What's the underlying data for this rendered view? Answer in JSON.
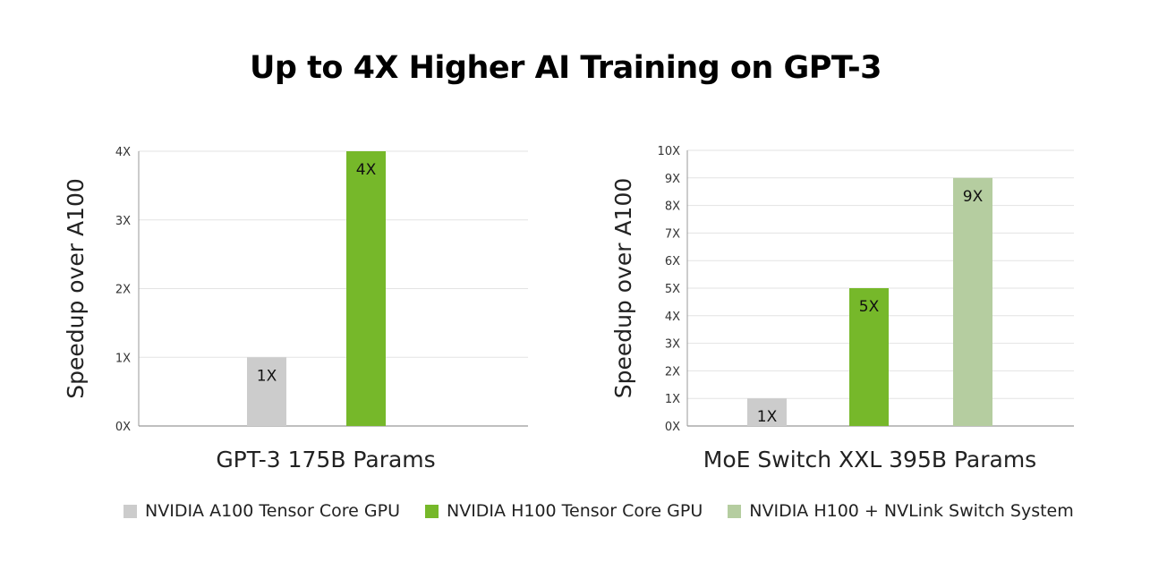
{
  "title": "Up to 4X Higher AI Training on GPT-3",
  "colors": {
    "a100": "#cccccc",
    "h100": "#76b82a",
    "h100_nvlink": "#b5cda0",
    "grid": "#e3e3e3",
    "axis": "#999999"
  },
  "legend": [
    {
      "label": "NVIDIA A100 Tensor Core GPU",
      "color": "#cccccc"
    },
    {
      "label": "NVIDIA H100 Tensor Core GPU",
      "color": "#76b82a"
    },
    {
      "label": "NVIDIA H100 + NVLink Switch System",
      "color": "#b5cda0"
    }
  ],
  "chart_data": [
    {
      "type": "bar",
      "title": "",
      "xlabel": "GPT-3 175B Params",
      "ylabel": "Speedup over A100",
      "ylim": [
        0,
        4
      ],
      "yticks": [
        "0X",
        "1X",
        "2X",
        "3X",
        "4X"
      ],
      "grid": true,
      "series": [
        {
          "name": "NVIDIA A100 Tensor Core GPU",
          "value": 1,
          "label": "1X",
          "color": "#cccccc"
        },
        {
          "name": "NVIDIA H100 Tensor Core GPU",
          "value": 4,
          "label": "4X",
          "color": "#76b82a"
        }
      ]
    },
    {
      "type": "bar",
      "title": "",
      "xlabel": "MoE Switch XXL 395B Params",
      "ylabel": "Speedup over A100",
      "ylim": [
        0,
        10
      ],
      "yticks": [
        "0X",
        "1X",
        "2X",
        "3X",
        "4X",
        "5X",
        "6X",
        "7X",
        "8X",
        "9X",
        "10X"
      ],
      "grid": true,
      "series": [
        {
          "name": "NVIDIA A100 Tensor Core GPU",
          "value": 1,
          "label": "1X",
          "color": "#cccccc"
        },
        {
          "name": "NVIDIA H100 Tensor Core GPU",
          "value": 5,
          "label": "5X",
          "color": "#76b82a"
        },
        {
          "name": "NVIDIA H100 + NVLink Switch System",
          "value": 9,
          "label": "9X",
          "color": "#b5cda0"
        }
      ]
    }
  ]
}
